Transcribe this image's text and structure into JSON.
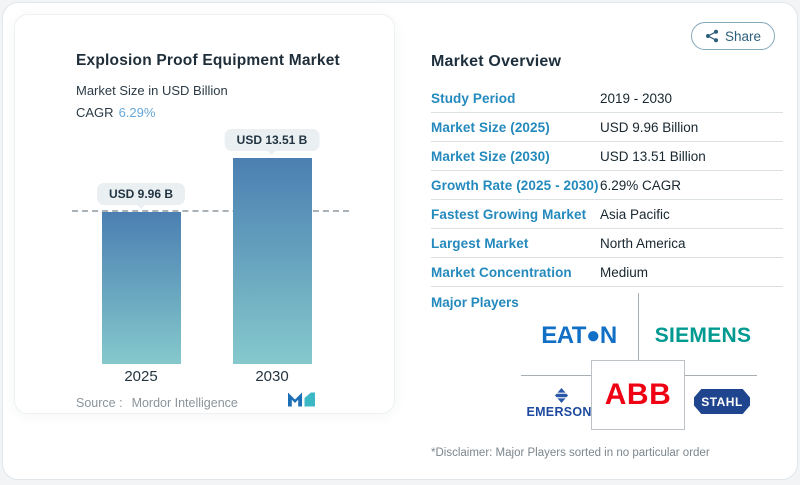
{
  "share": {
    "label": "Share"
  },
  "chart_card": {
    "title": "Explosion Proof Equipment Market",
    "subtitle": "Market Size in USD Billion",
    "cagr_label": "CAGR",
    "cagr_value": "6.29%",
    "source_label": "Source :",
    "source_value": "Mordor Intelligence"
  },
  "chart_data": {
    "type": "bar",
    "title": "Explosion Proof Equipment Market",
    "subtitle": "Market Size in USD Billion",
    "unit": "USD Billion",
    "categories": [
      "2025",
      "2030"
    ],
    "values": [
      9.96,
      13.51
    ],
    "value_labels": [
      "USD 9.96 B",
      "USD 13.51 B"
    ],
    "cagr": "6.29%",
    "reference_line_at": 9.96,
    "bar_gradient": [
      "#4b7fb2",
      "#85c9cc"
    ],
    "grid": false,
    "legend": false
  },
  "overview": {
    "title": "Market Overview",
    "rows": [
      {
        "label": "Study Period",
        "value": "2019 - 2030"
      },
      {
        "label": "Market Size (2025)",
        "value": "USD 9.96 Billion"
      },
      {
        "label": "Market Size (2030)",
        "value": "USD 13.51 Billion"
      },
      {
        "label": "Growth Rate (2025 - 2030)",
        "value": "6.29% CAGR"
      },
      {
        "label": "Fastest Growing Market",
        "value": "Asia Pacific"
      },
      {
        "label": "Largest Market",
        "value": "North America"
      },
      {
        "label": "Market Concentration",
        "value": "Medium"
      }
    ],
    "major_players_label": "Major Players",
    "players": {
      "eaton": "EAT●N",
      "siemens": "SIEMENS",
      "emerson": "EMERSON.",
      "abb": "ABB",
      "stahl": "STAHL"
    },
    "disclaimer": "*Disclaimer: Major Players sorted in no particular order"
  },
  "colors": {
    "label_blue": "#2489bd",
    "cagr_blue": "#67a7d8",
    "eaton_blue": "#1170c6",
    "siemens_teal": "#009a90",
    "emerson_blue": "#1d4a9e",
    "abb_red": "#f00013",
    "stahl_blue": "#20458f",
    "bar_top": "#4b7fb2",
    "bar_bottom": "#85c9cc"
  }
}
